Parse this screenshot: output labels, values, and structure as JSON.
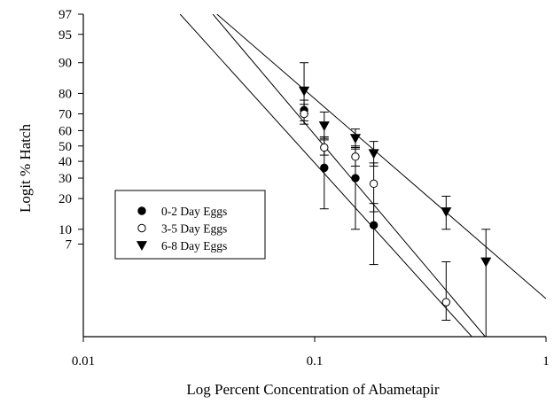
{
  "chart_data": {
    "type": "scatter",
    "xlabel": "Log Percent Concentration of Abametapir",
    "ylabel": "Logit % Hatch",
    "x_scale": "log",
    "y_scale": "logit",
    "xlim": [
      0.01,
      1
    ],
    "ylim": [
      0.65,
      97
    ],
    "x_ticks": [
      {
        "value": 0.01,
        "label": "0.01"
      },
      {
        "value": 0.1,
        "label": "0.1"
      },
      {
        "value": 1,
        "label": "1"
      }
    ],
    "y_ticks": [
      {
        "value": 7,
        "label": "7"
      },
      {
        "value": 10,
        "label": "10"
      },
      {
        "value": 20,
        "label": "20"
      },
      {
        "value": 30,
        "label": "30"
      },
      {
        "value": 40,
        "label": "40"
      },
      {
        "value": 50,
        "label": "50"
      },
      {
        "value": 60,
        "label": "60"
      },
      {
        "value": 70,
        "label": "70"
      },
      {
        "value": 80,
        "label": "80"
      },
      {
        "value": 90,
        "label": "90"
      },
      {
        "value": 95,
        "label": "95"
      },
      {
        "value": 97,
        "label": "97"
      }
    ],
    "grid": false,
    "legend_position": "center-left",
    "series": [
      {
        "name": "0-2 Day Eggs",
        "marker": "filled-circle",
        "points": [
          {
            "x": 0.09,
            "y": 72,
            "lo": 66,
            "hi": 77
          },
          {
            "x": 0.11,
            "y": 36,
            "lo": 16,
            "hi": 56
          },
          {
            "x": 0.15,
            "y": 30,
            "lo": 10,
            "hi": 50
          },
          {
            "x": 0.18,
            "y": 11,
            "lo": 4.2,
            "hi": 18
          }
        ],
        "fit_line": [
          [
            0.0262,
            97
          ],
          [
            0.478,
            0.65
          ]
        ]
      },
      {
        "name": "3-5 Day Eggs",
        "marker": "open-circle",
        "points": [
          {
            "x": 0.09,
            "y": 70,
            "lo": 64,
            "hi": 75
          },
          {
            "x": 0.11,
            "y": 49,
            "lo": 44,
            "hi": 54
          },
          {
            "x": 0.15,
            "y": 43,
            "lo": 37,
            "hi": 48
          },
          {
            "x": 0.18,
            "y": 27,
            "lo": 15,
            "hi": 39
          },
          {
            "x": 0.37,
            "y": 1.6,
            "lo": 1.0,
            "hi": 4.5
          }
        ],
        "fit_line": [
          [
            0.0363,
            97
          ],
          [
            0.546,
            0.65
          ]
        ]
      },
      {
        "name": "6-8 Day Eggs",
        "marker": "filled-triangle-down",
        "points": [
          {
            "x": 0.09,
            "y": 81,
            "lo": 70,
            "hi": 90
          },
          {
            "x": 0.11,
            "y": 63,
            "lo": 55,
            "hi": 71
          },
          {
            "x": 0.15,
            "y": 55,
            "lo": 49,
            "hi": 61
          },
          {
            "x": 0.18,
            "y": 45,
            "lo": 37,
            "hi": 53
          },
          {
            "x": 0.37,
            "y": 15,
            "lo": 10,
            "hi": 21
          },
          {
            "x": 0.55,
            "y": 4.5,
            "lo": 0.65,
            "hi": 10
          }
        ],
        "fit_line": [
          [
            0.0378,
            97
          ],
          [
            1.0,
            1.75
          ]
        ]
      }
    ]
  }
}
